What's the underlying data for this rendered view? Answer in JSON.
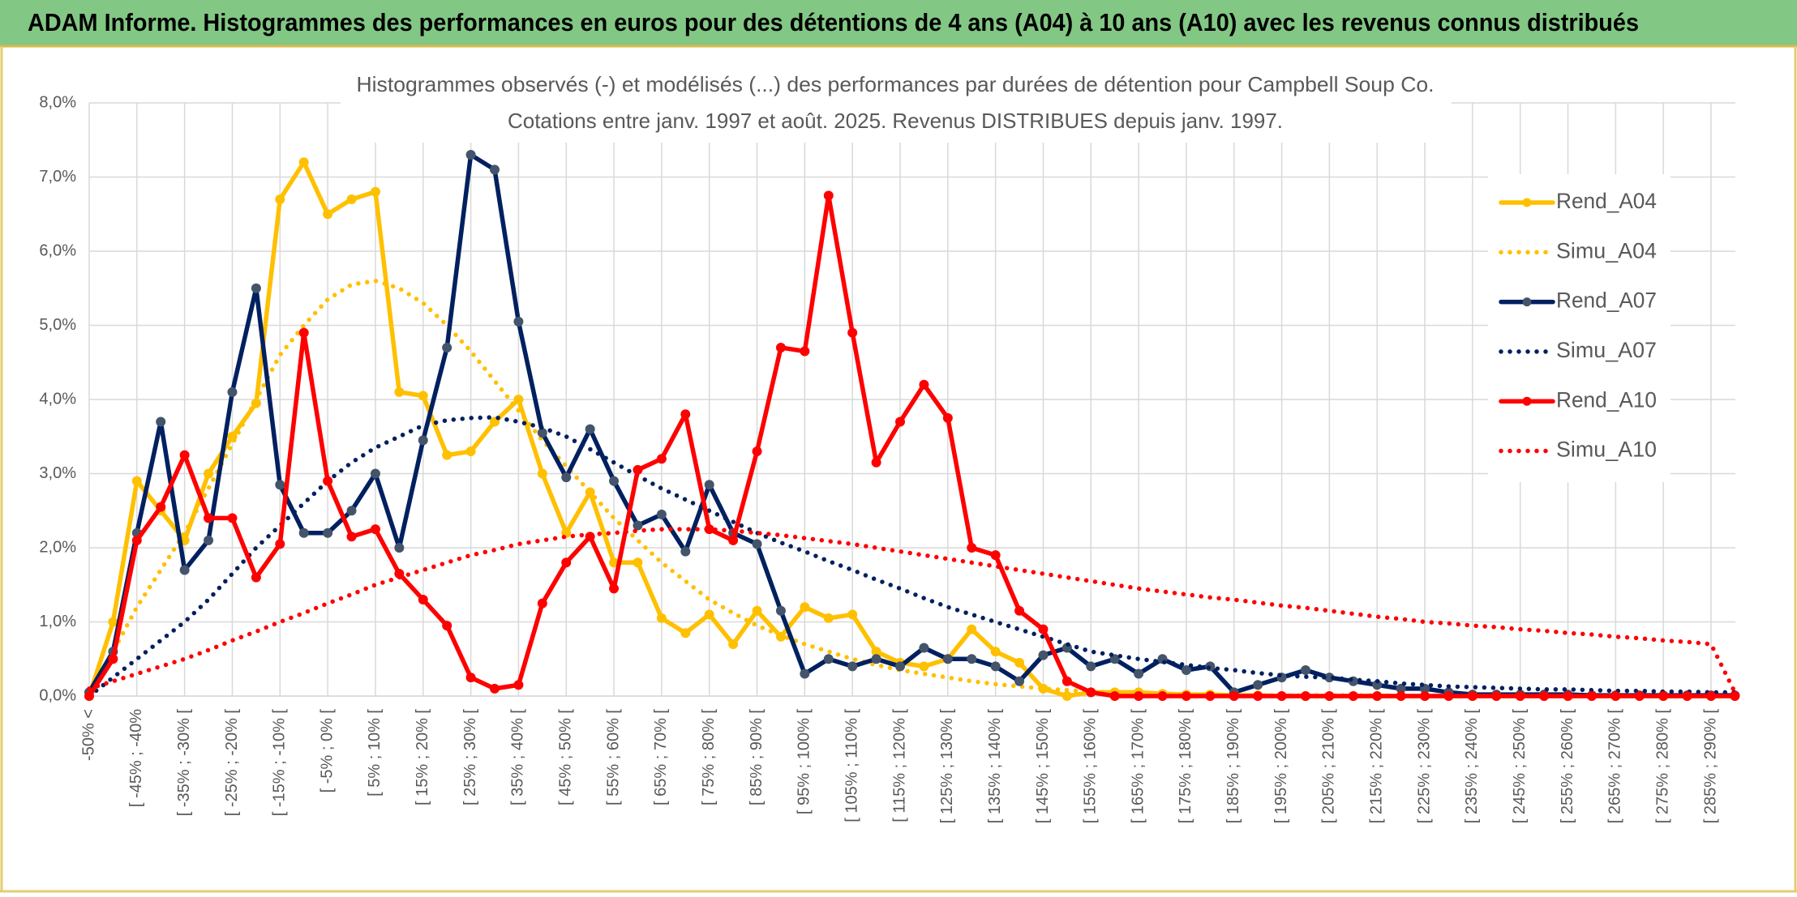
{
  "header": {
    "title": "ADAM Informe. Histogrammes des performances en euros pour des détentions de 4 ans (A04) à 10 ans (A10) avec les revenus connus distribués"
  },
  "chart_data": {
    "type": "line",
    "title": "Histogrammes observés (-) et modélisés (...) des performances par durées de détention pour Campbell Soup Co.",
    "subtitle": "Cotations entre janv. 1997 et août. 2025. Revenus DISTRIBUES depuis janv. 1997.",
    "categories": [
      "-50% <",
      null,
      "[ -45% ; -40%",
      null,
      "[ -35% ; -30% [",
      null,
      "[ -25% ; -20% [",
      null,
      "[ -15% ; -10% [",
      null,
      "[ -5% ; 0% [",
      null,
      "[ 5% ; 10% [",
      null,
      "[ 15% ; 20% [",
      null,
      "[ 25% ; 30% [",
      null,
      "[ 35% ; 40% [",
      null,
      "[ 45% ; 50% [",
      null,
      "[ 55% ; 60% [",
      null,
      "[ 65% ; 70% [",
      null,
      "[ 75% ; 80% [",
      null,
      "[ 85% ; 90% [",
      null,
      "[ 95% ; 100% [",
      null,
      "[ 105% ; 110% [",
      null,
      "[ 115% ; 120% [",
      null,
      "[ 125% ; 130% [",
      null,
      "[ 135% ; 140% [",
      null,
      "[ 145% ; 150% [",
      null,
      "[ 155% ; 160% [",
      null,
      "[ 165% ; 170% [",
      null,
      "[ 175% ; 180% [",
      null,
      "[ 185% ; 190% [",
      null,
      "[ 195% ; 200% [",
      null,
      "[ 205% ; 210% [",
      null,
      "[ 215% ; 220% [",
      null,
      "[ 225% ; 230% [",
      null,
      "[ 235% ; 240% [",
      null,
      "[ 245% ; 250% [",
      null,
      "[ 255% ; 260% [",
      null,
      "[ 265% ; 270% [",
      null,
      "[ 275% ; 280% [",
      null,
      "[ 285% ; 290% [",
      null
    ],
    "series": [
      {
        "name": "Rend_A04",
        "color": "#ffc000",
        "marker_color": "#ffc000",
        "style": "solid",
        "values": [
          0,
          1.0,
          2.9,
          2.5,
          2.1,
          3.0,
          3.5,
          3.95,
          6.7,
          7.2,
          6.5,
          6.7,
          6.8,
          4.1,
          4.05,
          3.25,
          3.3,
          3.7,
          4.0,
          3.0,
          2.2,
          2.75,
          1.8,
          1.8,
          1.05,
          0.85,
          1.1,
          0.7,
          1.15,
          0.8,
          1.2,
          1.05,
          1.1,
          0.6,
          0.45,
          0.4,
          0.5,
          0.9,
          0.6,
          0.45,
          0.1,
          0,
          0.05,
          0.05,
          0.05,
          0.03,
          0.02,
          0.02,
          0.01,
          0.01,
          0,
          0,
          0,
          0,
          0,
          0,
          0,
          0,
          0,
          0,
          0,
          0,
          0,
          0,
          0,
          0,
          0,
          0,
          0,
          0
        ]
      },
      {
        "name": "Simu_A04",
        "color": "#ffc000",
        "style": "dotted",
        "values": [
          0,
          0.6,
          1.2,
          1.7,
          2.2,
          2.8,
          3.4,
          4.0,
          4.6,
          5.0,
          5.35,
          5.55,
          5.6,
          5.5,
          5.3,
          5.0,
          4.65,
          4.25,
          3.85,
          3.45,
          3.1,
          2.75,
          2.4,
          2.1,
          1.8,
          1.55,
          1.3,
          1.12,
          0.95,
          0.82,
          0.7,
          0.6,
          0.5,
          0.42,
          0.35,
          0.3,
          0.25,
          0.2,
          0.16,
          0.13,
          0.1,
          0.08,
          0.06,
          0.05,
          0.04,
          0.03,
          0.02,
          0.02,
          0.01,
          0.01,
          0.01,
          0.01,
          0.01,
          0.01,
          0.01,
          0,
          0,
          0,
          0,
          0,
          0,
          0,
          0,
          0,
          0,
          0,
          0,
          0,
          0,
          0
        ]
      },
      {
        "name": "Rend_A07",
        "color": "#002060",
        "marker_color": "#44546a",
        "style": "solid",
        "values": [
          0.05,
          0.6,
          2.2,
          3.7,
          1.7,
          2.1,
          4.1,
          5.5,
          2.85,
          2.2,
          2.2,
          2.5,
          3.0,
          2.0,
          3.45,
          4.7,
          7.3,
          7.1,
          5.05,
          3.55,
          2.95,
          3.6,
          2.9,
          2.3,
          2.45,
          1.95,
          2.85,
          2.2,
          2.05,
          1.15,
          0.3,
          0.5,
          0.4,
          0.5,
          0.4,
          0.65,
          0.5,
          0.5,
          0.4,
          0.2,
          0.55,
          0.65,
          0.4,
          0.5,
          0.3,
          0.5,
          0.35,
          0.4,
          0.05,
          0.15,
          0.25,
          0.35,
          0.25,
          0.2,
          0.15,
          0.1,
          0.1,
          0.05,
          0.02,
          0.02,
          0.02,
          0.02,
          0.02,
          0.01,
          0.01,
          0.01,
          0.01,
          0.01,
          0.01,
          0.01
        ]
      },
      {
        "name": "Simu_A07",
        "color": "#002060",
        "style": "dotted",
        "values": [
          0,
          0.25,
          0.5,
          0.75,
          1.0,
          1.3,
          1.65,
          2.0,
          2.3,
          2.6,
          2.9,
          3.15,
          3.35,
          3.5,
          3.65,
          3.72,
          3.75,
          3.76,
          3.7,
          3.62,
          3.5,
          3.33,
          3.15,
          2.97,
          2.8,
          2.65,
          2.5,
          2.35,
          2.2,
          2.07,
          1.95,
          1.82,
          1.7,
          1.57,
          1.45,
          1.32,
          1.2,
          1.1,
          1.0,
          0.9,
          0.8,
          0.7,
          0.6,
          0.55,
          0.5,
          0.46,
          0.42,
          0.38,
          0.35,
          0.31,
          0.28,
          0.26,
          0.25,
          0.22,
          0.2,
          0.17,
          0.15,
          0.13,
          0.12,
          0.11,
          0.1,
          0.09,
          0.09,
          0.08,
          0.07,
          0.07,
          0.06,
          0.06,
          0.05,
          0.05
        ]
      },
      {
        "name": "Rend_A10",
        "color": "#ff0000",
        "marker_color": "#ff0000",
        "style": "solid",
        "values": [
          0,
          0.5,
          2.1,
          2.55,
          3.25,
          2.4,
          2.4,
          1.6,
          2.05,
          4.9,
          2.9,
          2.15,
          2.25,
          1.65,
          1.3,
          0.95,
          0.25,
          0.1,
          0.15,
          1.25,
          1.8,
          2.15,
          1.45,
          3.05,
          3.2,
          3.8,
          2.25,
          2.1,
          3.3,
          4.7,
          4.65,
          6.75,
          4.9,
          3.15,
          3.7,
          4.2,
          3.75,
          2.0,
          1.9,
          1.15,
          0.9,
          0.2,
          0.05,
          0,
          0,
          0,
          0,
          0,
          0,
          0,
          0,
          0,
          0,
          0,
          0,
          0,
          0,
          0,
          0,
          0,
          0,
          0,
          0,
          0,
          0,
          0,
          0,
          0,
          0,
          0
        ]
      },
      {
        "name": "Simu_A10",
        "color": "#ff0000",
        "style": "dotted",
        "values": [
          0.1,
          0.2,
          0.3,
          0.4,
          0.5,
          0.62,
          0.75,
          0.87,
          1.0,
          1.12,
          1.25,
          1.37,
          1.5,
          1.6,
          1.7,
          1.8,
          1.9,
          1.97,
          2.05,
          2.1,
          2.15,
          2.18,
          2.2,
          2.23,
          2.25,
          2.25,
          2.25,
          2.23,
          2.2,
          2.17,
          2.13,
          2.09,
          2.05,
          2.0,
          1.95,
          1.9,
          1.85,
          1.8,
          1.75,
          1.7,
          1.65,
          1.6,
          1.55,
          1.5,
          1.45,
          1.41,
          1.37,
          1.33,
          1.3,
          1.26,
          1.22,
          1.19,
          1.15,
          1.11,
          1.07,
          1.04,
          1.0,
          0.98,
          0.95,
          0.93,
          0.9,
          0.88,
          0.85,
          0.83,
          0.8,
          0.78,
          0.75,
          0.73,
          0.7,
          0.05
        ]
      }
    ],
    "ylim": [
      0,
      8
    ],
    "yticks": [
      {
        "value": 0,
        "label": "0,0%"
      },
      {
        "value": 1,
        "label": "1,0%"
      },
      {
        "value": 2,
        "label": "2,0%"
      },
      {
        "value": 3,
        "label": "3,0%"
      },
      {
        "value": 4,
        "label": "4,0%"
      },
      {
        "value": 5,
        "label": "5,0%"
      },
      {
        "value": 6,
        "label": "6,0%"
      },
      {
        "value": 7,
        "label": "7,0%"
      },
      {
        "value": 8,
        "label": "8,0%"
      }
    ],
    "grid": true,
    "legend": "right"
  }
}
